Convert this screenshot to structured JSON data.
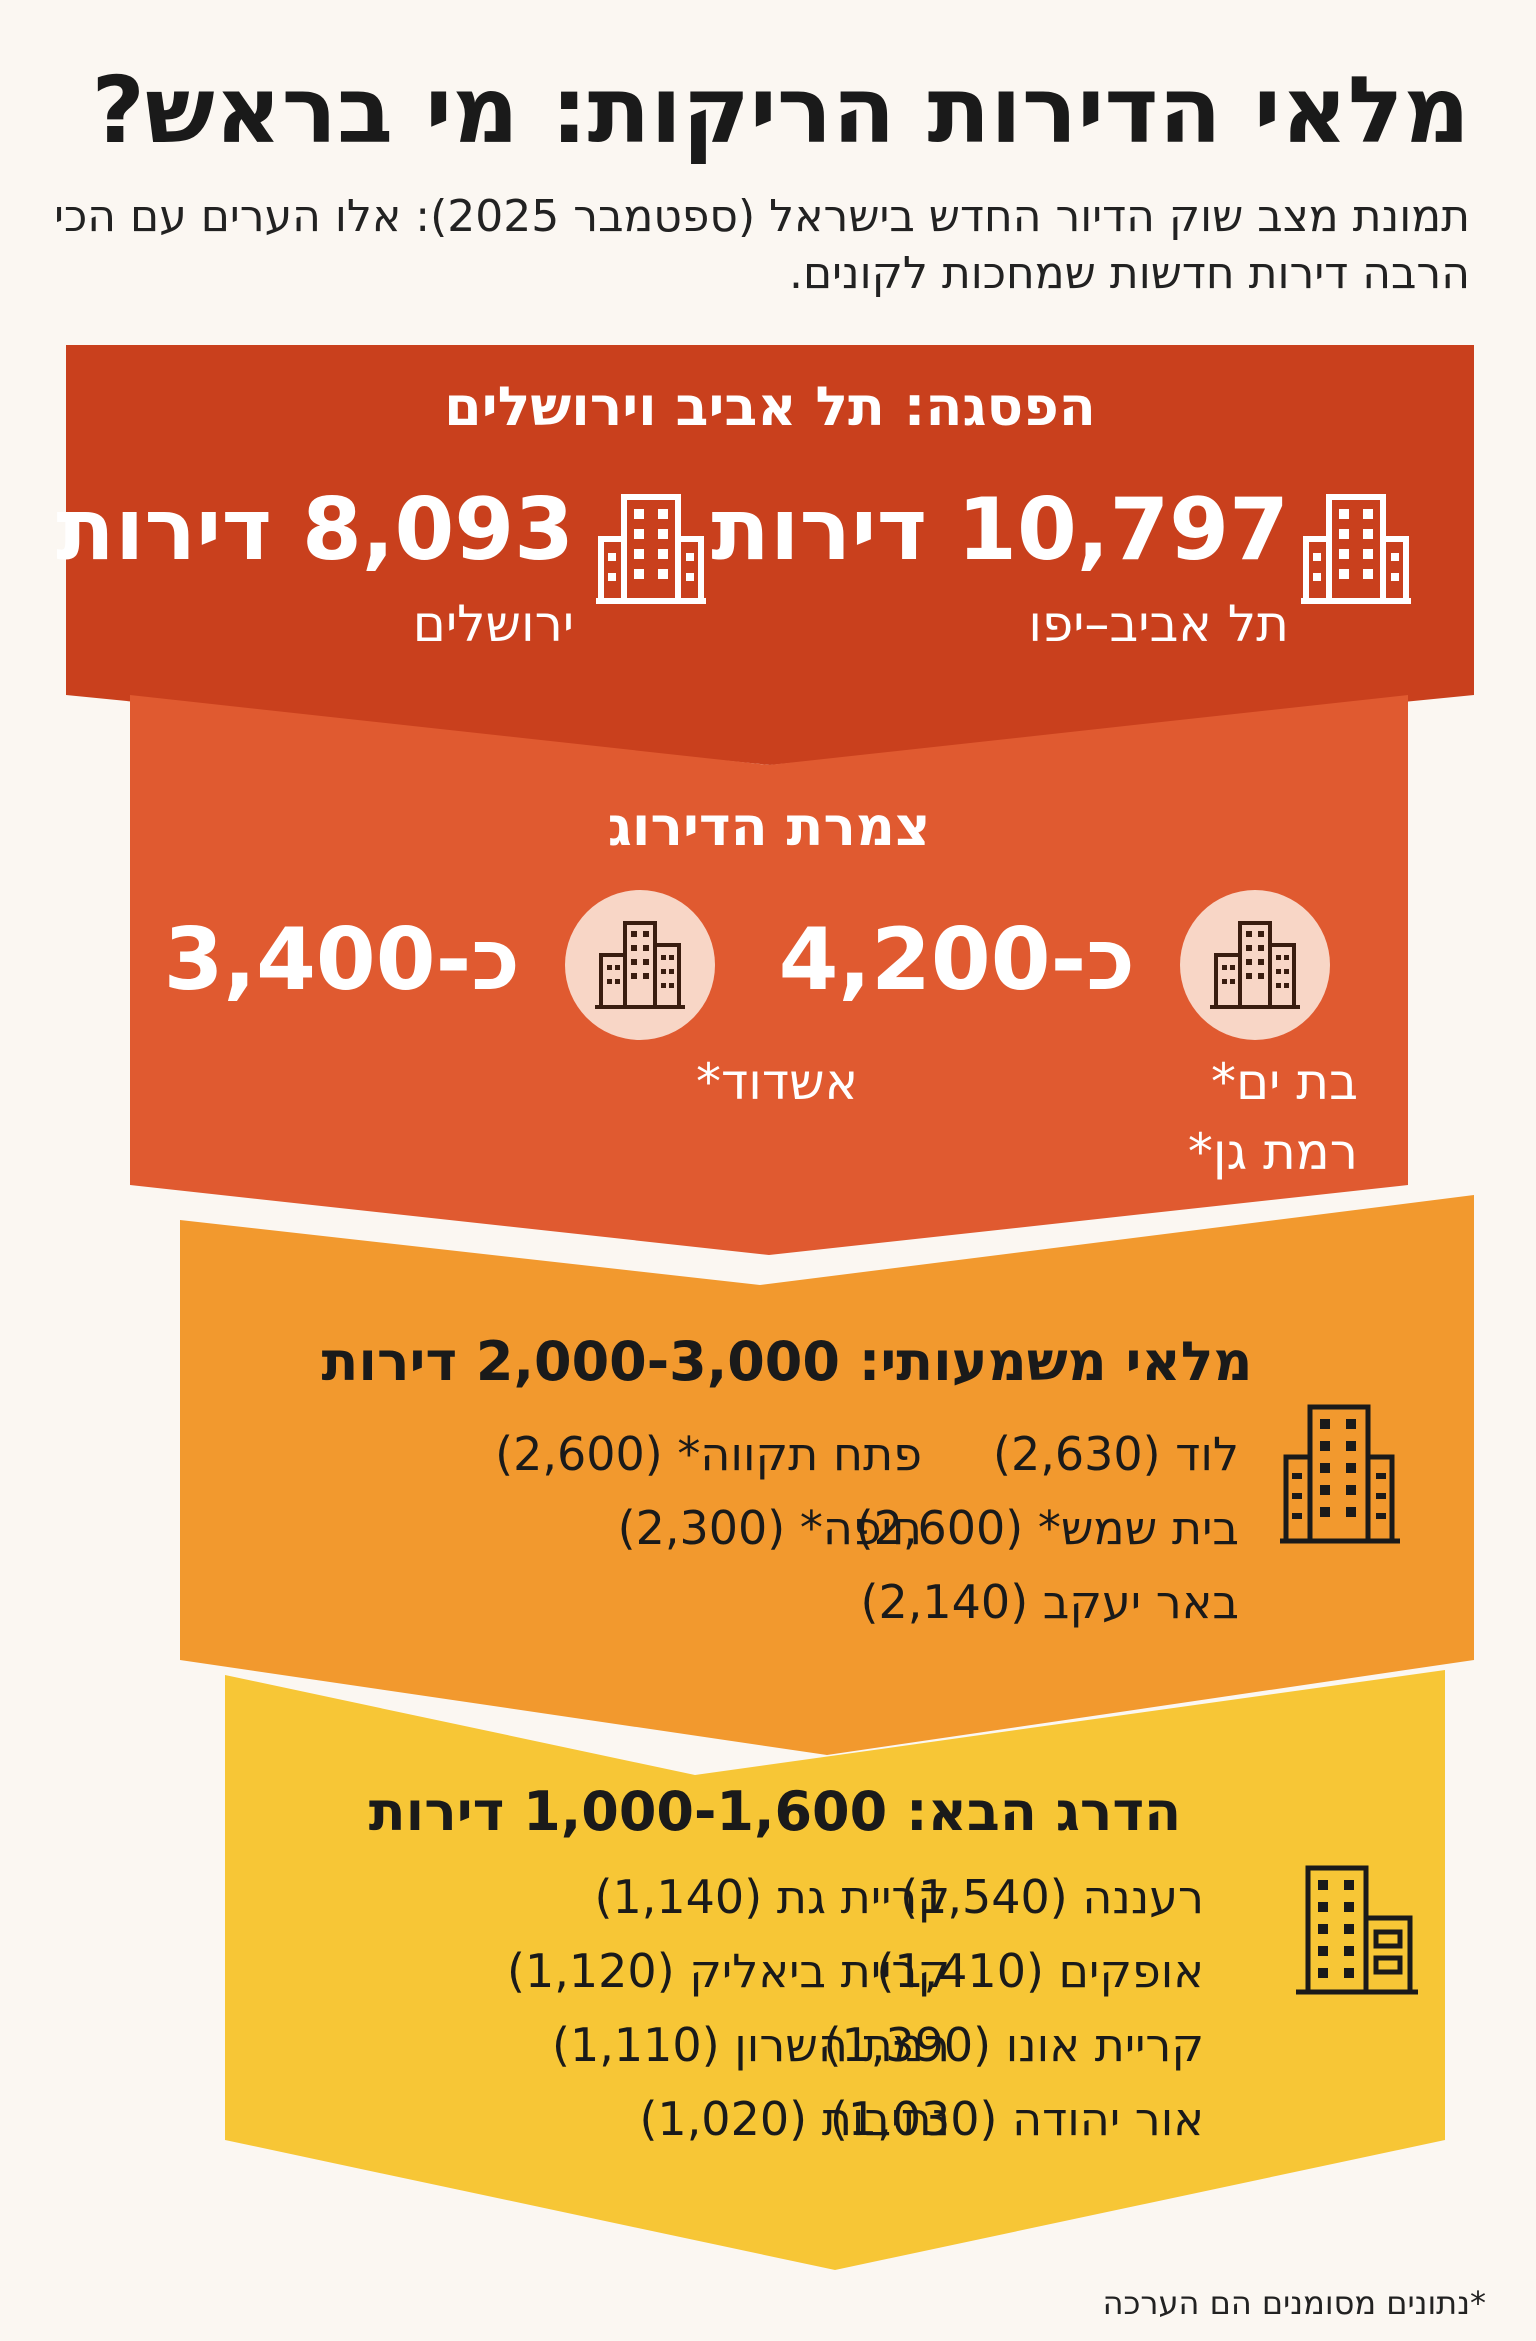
{
  "title": "מלאי הדירות הריקות: מי בראש?",
  "subtitle": "תמונת מצב שוק הדיור החדש בישראל (ספטמבר 2025): אלו הערים עם הכי הרבה דירות חדשות שמחכות לקונים.",
  "colors": {
    "band1": "#c9401d",
    "band2": "#e05a30",
    "band3": "#f2992e",
    "band4": "#f7c636",
    "circle": "#f8d6c6",
    "icon_light": "#ffffff",
    "icon_dark": "#3a1d10"
  },
  "tier1": {
    "title": "הפסגה: תל אביב וירושלים",
    "left": {
      "value": "8,093 דירות",
      "city": "ירושלים",
      "icon": "building-icon"
    },
    "right": {
      "value": "10,797 דירות",
      "city": "תל אביב–יפו",
      "icon": "building-icon"
    }
  },
  "tier2": {
    "title": "צמרת הדירוג",
    "left": {
      "value": "כ-3,400",
      "cities": [
        "אשדוד*"
      ],
      "icon": "skyscraper-icon"
    },
    "right": {
      "value": "כ-4,200",
      "cities": [
        "בת ים*",
        "רמת גן*"
      ],
      "icon": "skyscraper-icon"
    }
  },
  "tier3": {
    "title": "מלאי משמעותי: 2,000-3,000 דירות",
    "right_list": [
      "לוד (2,630)",
      "בית שמש* (2,600)",
      "באר יעקב (2,140)"
    ],
    "left_list": [
      "פתח תקווה* (2,600)",
      "חיפה* (2,300)"
    ],
    "icon": "building-icon"
  },
  "tier4": {
    "title": "הדרג הבא: 1,000-1,600 דירות",
    "right_list": [
      "רעננה (1,540)",
      "אופקים (1,410)",
      "קריית אונו (1,390)",
      "אור יהודה (1,030)"
    ],
    "left_list": [
      "קריית גת (1,140)",
      "קריית ביאליק (1,120)",
      "רמת השרון (1,110)",
      "נתיבות (1,020)"
    ],
    "icon": "office-building-icon"
  },
  "footnote": "*נתונים מסומנים הם הערכה"
}
